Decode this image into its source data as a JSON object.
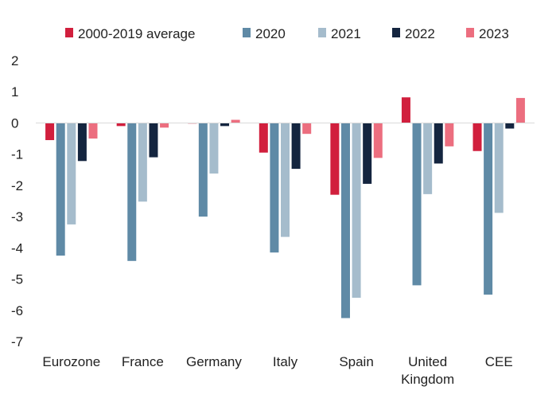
{
  "chart_data": {
    "type": "bar",
    "title": "",
    "xlabel": "",
    "ylabel": "",
    "categories": [
      [
        "Eurozone"
      ],
      [
        "France"
      ],
      [
        "Germany"
      ],
      [
        "Italy"
      ],
      [
        "Spain"
      ],
      [
        "United",
        "Kingdom"
      ],
      [
        "CEE"
      ]
    ],
    "ylim": [
      -7,
      2
    ],
    "yticks": [
      2,
      1,
      0,
      -1,
      -2,
      -3,
      -4,
      -5,
      -6,
      -7
    ],
    "grid": false,
    "legend_position": "top",
    "series": [
      {
        "name": "2000-2019 average",
        "color": "#d11f3d",
        "values": [
          -0.55,
          -0.1,
          -0.02,
          -0.95,
          -2.3,
          0.82,
          -0.9
        ]
      },
      {
        "name": "2020",
        "color": "#5f8aa6",
        "values": [
          -4.25,
          -4.42,
          -3.0,
          -4.15,
          -6.25,
          -5.2,
          -5.5
        ]
      },
      {
        "name": "2021",
        "color": "#a5bccc",
        "values": [
          -3.25,
          -2.52,
          -1.62,
          -3.65,
          -5.6,
          -2.28,
          -2.88
        ]
      },
      {
        "name": "2022",
        "color": "#14253f",
        "values": [
          -1.22,
          -1.1,
          -0.1,
          -1.47,
          -1.95,
          -1.3,
          -0.18
        ]
      },
      {
        "name": "2023",
        "color": "#ec6e7f",
        "values": [
          -0.5,
          -0.15,
          0.1,
          -0.35,
          -1.12,
          -0.75,
          0.8
        ]
      }
    ]
  }
}
